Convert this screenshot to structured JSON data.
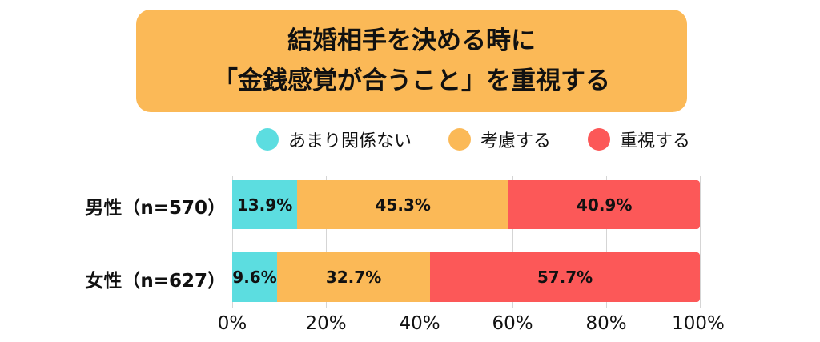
{
  "title": {
    "line1": "結婚相手を決める時に",
    "line2": "「金銭感覚が合うこと」を重視する"
  },
  "colors": {
    "title_bg": "#FBB957",
    "series": [
      "#5CDDE0",
      "#FBB957",
      "#FC5858"
    ]
  },
  "chart_data": {
    "type": "bar",
    "orientation": "horizontal-stacked-100",
    "title": "結婚相手を決める時に「金銭感覚が合うこと」を重視する",
    "categories": [
      "男性（n=570）",
      "女性（n=627）"
    ],
    "series": [
      {
        "name": "あまり関係ない",
        "values": [
          13.9,
          9.6
        ],
        "labels": [
          "13.9%",
          "9.6%"
        ]
      },
      {
        "name": "考慮する",
        "values": [
          45.3,
          32.7
        ],
        "labels": [
          "45.3%",
          "32.7%"
        ]
      },
      {
        "name": "重視する",
        "values": [
          40.9,
          57.7
        ],
        "labels": [
          "40.9%",
          "57.7%"
        ]
      }
    ],
    "xlim": [
      0,
      100
    ],
    "xticks": [
      "0%",
      "20%",
      "40%",
      "60%",
      "80%",
      "100%"
    ],
    "grid": true,
    "legend": "top"
  }
}
